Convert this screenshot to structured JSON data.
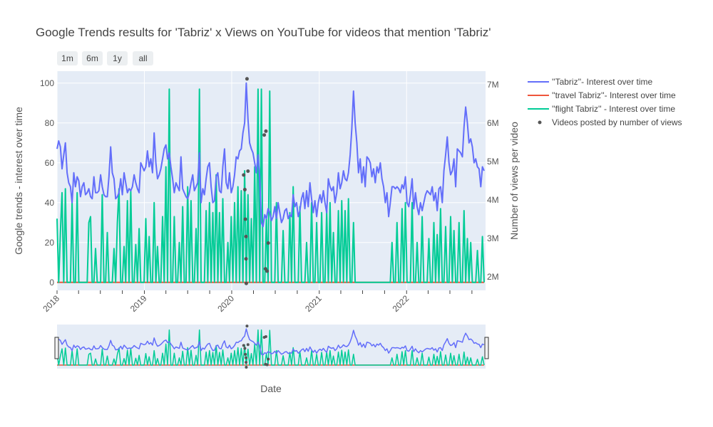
{
  "chart_data": {
    "type": "line",
    "title": "Google Trends results for 'Tabriz' x Views on YouTube for videos that mention 'Tabriz'",
    "xlabel": "Date",
    "ylabel": "Google trends - interest over time",
    "y2label": "Number of views per video",
    "x_range": [
      "2018-01-01",
      "2022-11-27"
    ],
    "ylim": [
      -4,
      106
    ],
    "y2lim": [
      1650000,
      7350000
    ],
    "x_ticks": [
      "2018",
      "2019",
      "2020",
      "2021",
      "2022"
    ],
    "y_ticks": [
      0,
      20,
      40,
      60,
      80,
      100
    ],
    "y2_ticks": [
      "2M",
      "3M",
      "4M",
      "5M",
      "6M",
      "7M"
    ],
    "y2_tick_values": [
      2000000,
      3000000,
      4000000,
      5000000,
      6000000,
      7000000
    ],
    "range_buttons": [
      "1m",
      "6m",
      "1y",
      "all"
    ],
    "legend_position": "right",
    "grid": true,
    "series": [
      {
        "name": "''Tabriz''- Interest over time",
        "color": "#636efa",
        "axis": "y",
        "x_start": "2018-01-01",
        "x_step_days": 7,
        "values": [
          67,
          71,
          68,
          57,
          64,
          70,
          55,
          50,
          48,
          40,
          55,
          48,
          53,
          51,
          43,
          48,
          50,
          44,
          45,
          47,
          43,
          42,
          53,
          45,
          45,
          46,
          54,
          48,
          44,
          43,
          43,
          53,
          68,
          55,
          52,
          42,
          43,
          45,
          52,
          44,
          55,
          50,
          45,
          47,
          46,
          48,
          54,
          50,
          47,
          45,
          60,
          58,
          56,
          58,
          66,
          58,
          62,
          55,
          75,
          60,
          52,
          54,
          57,
          62,
          67,
          69,
          62,
          65,
          58,
          52,
          45,
          50,
          48,
          46,
          63,
          47,
          45,
          43,
          42,
          45,
          50,
          54,
          46,
          48,
          50,
          65,
          40,
          47,
          44,
          52,
          58,
          60,
          48,
          40,
          41,
          53,
          55,
          46,
          45,
          58,
          67,
          50,
          47,
          55,
          45,
          48,
          54,
          63,
          62,
          66,
          67,
          75,
          80,
          100,
          82,
          70,
          67,
          65,
          60,
          55,
          64,
          53,
          30,
          28,
          34,
          32,
          37,
          35,
          31,
          33,
          38,
          32,
          40,
          35,
          30,
          32,
          36,
          37,
          32,
          34,
          33,
          44,
          38,
          40,
          33,
          36,
          42,
          45,
          37,
          46,
          38,
          50,
          42,
          35,
          41,
          33,
          40,
          44,
          40,
          46,
          40,
          35,
          52,
          48,
          46,
          48,
          40,
          45,
          55,
          47,
          50,
          56,
          52,
          51,
          55,
          64,
          77,
          96,
          80,
          70,
          55,
          62,
          50,
          58,
          48,
          63,
          62,
          60,
          53,
          57,
          50,
          58,
          55,
          60,
          52,
          48,
          40,
          45,
          33,
          40,
          48,
          48,
          47,
          48,
          47,
          45,
          49,
          47,
          53,
          40,
          38,
          44,
          52,
          37,
          45,
          38,
          34,
          40,
          36,
          40,
          44,
          46,
          45,
          44,
          48,
          41,
          45,
          36,
          47,
          48,
          40,
          56,
          64,
          73,
          60,
          54,
          56,
          62,
          48,
          67,
          66,
          65,
          63,
          78,
          88,
          80,
          70,
          72,
          68,
          60,
          62,
          58,
          57,
          48,
          58,
          56,
          47,
          62,
          58,
          55,
          60,
          45,
          44,
          47,
          40,
          35,
          45,
          36,
          40,
          55,
          46,
          38,
          40,
          36,
          44,
          48,
          49,
          45,
          47,
          48,
          50,
          47,
          46,
          45,
          49,
          40,
          42,
          38,
          46,
          48,
          45,
          43,
          40,
          42,
          36,
          38
        ]
      },
      {
        "name": "''travel Tabriz''- Interest over time",
        "color": "#ef553b",
        "axis": "y",
        "x_start": "2018-01-01",
        "x_step_days": 7,
        "flat_value": 0
      },
      {
        "name": "''flight Tabriz'' - Interest over time",
        "color": "#00cc96",
        "axis": "y",
        "x_start": "2018-01-01",
        "x_step_days": 7,
        "spikes": [
          [
            0,
            32
          ],
          [
            2,
            25
          ],
          [
            3,
            45
          ],
          [
            5,
            47
          ],
          [
            9,
            40
          ],
          [
            12,
            45
          ],
          [
            19,
            30
          ],
          [
            20,
            33
          ],
          [
            23,
            17
          ],
          [
            27,
            44
          ],
          [
            30,
            25
          ],
          [
            34,
            17
          ],
          [
            36,
            30
          ],
          [
            37,
            47
          ],
          [
            40,
            18
          ],
          [
            42,
            41
          ],
          [
            44,
            46
          ],
          [
            47,
            19
          ],
          [
            49,
            27
          ],
          [
            53,
            32
          ],
          [
            55,
            23
          ],
          [
            58,
            40
          ],
          [
            60,
            18
          ],
          [
            63,
            33
          ],
          [
            65,
            58
          ],
          [
            67,
            97
          ],
          [
            70,
            33
          ],
          [
            73,
            20
          ],
          [
            75,
            38
          ],
          [
            78,
            48
          ],
          [
            80,
            41
          ],
          [
            83,
            27
          ],
          [
            85,
            97
          ],
          [
            89,
            36
          ],
          [
            91,
            40
          ],
          [
            93,
            35
          ],
          [
            95,
            54
          ],
          [
            97,
            35
          ],
          [
            99,
            42
          ],
          [
            102,
            20
          ],
          [
            104,
            33
          ],
          [
            106,
            40
          ],
          [
            108,
            48
          ],
          [
            110,
            46
          ],
          [
            112,
            56
          ],
          [
            114,
            44
          ],
          [
            116,
            32
          ],
          [
            118,
            58
          ],
          [
            120,
            97
          ],
          [
            122,
            97
          ],
          [
            125,
            32
          ],
          [
            127,
            96
          ],
          [
            131,
            40
          ],
          [
            135,
            26
          ],
          [
            139,
            35
          ],
          [
            141,
            48
          ],
          [
            145,
            38
          ],
          [
            149,
            20
          ],
          [
            152,
            40
          ],
          [
            155,
            30
          ],
          [
            158,
            35
          ],
          [
            161,
            36
          ],
          [
            163,
            40
          ],
          [
            165,
            25
          ],
          [
            168,
            36
          ],
          [
            170,
            41
          ],
          [
            172,
            36
          ],
          [
            174,
            42
          ],
          [
            177,
            30
          ],
          [
            200,
            20
          ],
          [
            203,
            30
          ],
          [
            206,
            37
          ],
          [
            208,
            40
          ],
          [
            212,
            40
          ],
          [
            215,
            20
          ],
          [
            218,
            33
          ],
          [
            222,
            22
          ],
          [
            225,
            30
          ],
          [
            227,
            24
          ],
          [
            229,
            37
          ],
          [
            232,
            28
          ],
          [
            235,
            33
          ],
          [
            237,
            26
          ],
          [
            240,
            30
          ],
          [
            243,
            36
          ],
          [
            245,
            22
          ],
          [
            247,
            20
          ],
          [
            251,
            16
          ],
          [
            254,
            23
          ],
          [
            256,
            36
          ],
          [
            258,
            40
          ],
          [
            260,
            30
          ],
          [
            262,
            22
          ],
          [
            265,
            29
          ],
          [
            268,
            46
          ],
          [
            270,
            20
          ],
          [
            272,
            60
          ],
          [
            274,
            30
          ],
          [
            276,
            25
          ],
          [
            278,
            40
          ],
          [
            280,
            50
          ],
          [
            282,
            40
          ],
          [
            284,
            30
          ],
          [
            286,
            38
          ],
          [
            288,
            40
          ],
          [
            290,
            26
          ],
          [
            292,
            62
          ],
          [
            294,
            33
          ],
          [
            296,
            40
          ],
          [
            298,
            30
          ],
          [
            300,
            40
          ],
          [
            302,
            94
          ],
          [
            304,
            40
          ],
          [
            306,
            36
          ],
          [
            308,
            29
          ],
          [
            310,
            40
          ],
          [
            312,
            33
          ],
          [
            314,
            28
          ],
          [
            316,
            40
          ],
          [
            318,
            44
          ],
          [
            320,
            33
          ],
          [
            322,
            36
          ],
          [
            324,
            40
          ],
          [
            326,
            25
          ],
          [
            328,
            38
          ],
          [
            330,
            34
          ],
          [
            332,
            40
          ],
          [
            334,
            36
          ],
          [
            336,
            40
          ],
          [
            338,
            38
          ],
          [
            340,
            40
          ],
          [
            342,
            33
          ],
          [
            344,
            40
          ],
          [
            346,
            36
          ],
          [
            348,
            40
          ],
          [
            350,
            38
          ],
          [
            352,
            41
          ],
          [
            354,
            36
          ],
          [
            356,
            40
          ],
          [
            358,
            38
          ],
          [
            360,
            40
          ],
          [
            362,
            36
          ],
          [
            364,
            40
          ],
          [
            366,
            38
          ],
          [
            368,
            40
          ]
        ]
      },
      {
        "name": "Videos posted by number of views",
        "color": "#555555",
        "axis": "y2",
        "mode": "markers",
        "points": [
          [
            "2020-02-20",
            4650000
          ],
          [
            "2020-02-25",
            4270000
          ],
          [
            "2020-02-27",
            3500000
          ],
          [
            "2020-03-01",
            3050000
          ],
          [
            "2020-03-01",
            2470000
          ],
          [
            "2020-03-02",
            1830000
          ],
          [
            "2020-03-05",
            7150000
          ],
          [
            "2020-03-09",
            4750000
          ],
          [
            "2020-05-16",
            5690000
          ],
          [
            "2020-05-23",
            5790000
          ],
          [
            "2020-05-21",
            2210000
          ],
          [
            "2020-05-28",
            2150000
          ],
          [
            "2020-06-02",
            2880000
          ]
        ]
      }
    ]
  }
}
